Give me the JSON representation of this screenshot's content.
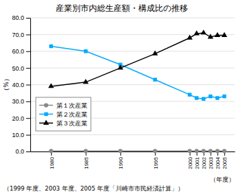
{
  "chart_data": {
    "type": "line",
    "title": "産業別市内総生産額・構成比の推移",
    "ylabel": "（%）",
    "xlabel": "（年度）",
    "footnote": "（1999 年度、2003 年度、2005 年度「川崎市市民経済計算」）",
    "x": [
      1980,
      1985,
      1990,
      1995,
      2000,
      2001,
      2002,
      2003,
      2004,
      2005
    ],
    "series": [
      {
        "name": "第１次産業",
        "color": "#888888",
        "marker": "circle",
        "values": [
          0.3,
          0.3,
          0.3,
          0.3,
          0.3,
          0.3,
          0.3,
          0.3,
          0.3,
          0.3
        ]
      },
      {
        "name": "第２次産業",
        "color": "#00aaff",
        "marker": "square",
        "values": [
          63.0,
          60.0,
          52.0,
          43.0,
          34.0,
          32.0,
          31.5,
          33.0,
          32.0,
          33.0
        ]
      },
      {
        "name": "第３次産業",
        "color": "#000000",
        "marker": "triangle",
        "values": [
          39.0,
          41.5,
          50.0,
          58.5,
          68.0,
          70.5,
          71.0,
          68.5,
          69.5,
          69.5
        ]
      }
    ],
    "xlim": [
      1977,
      2006.5
    ],
    "xticks": [
      1980,
      1985,
      1990,
      1995,
      2000,
      2001,
      2002,
      2003,
      2004,
      2005
    ],
    "ylim": [
      0.0,
      80.0
    ],
    "yticks": [
      {
        "value": 0.0,
        "label": "0.0"
      },
      {
        "value": 10.0,
        "label": "10.0"
      },
      {
        "value": 20.0,
        "label": "20.0"
      },
      {
        "value": 30.0,
        "label": "30.0"
      },
      {
        "value": 40.0,
        "label": "40.0"
      },
      {
        "value": 50.0,
        "label": "50.0"
      },
      {
        "value": 60.0,
        "label": "60.0"
      },
      {
        "value": 70.0,
        "label": "70.0"
      },
      {
        "value": 80.0,
        "label": "80.0"
      }
    ],
    "grid": true,
    "legend": "lower left"
  }
}
